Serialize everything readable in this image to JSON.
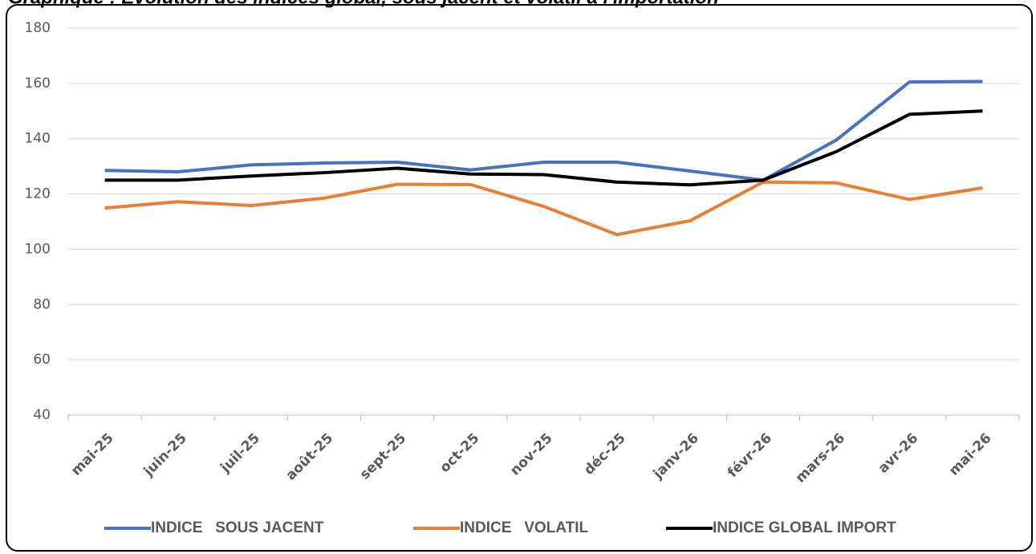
{
  "chart_data": {
    "type": "line",
    "title": "Graphique : Evolution des indices global, sous jacent et volatil à l'importation",
    "categories": [
      "mai-25",
      "juin-25",
      "juil-25",
      "août-25",
      "sept-25",
      "oct-25",
      "nov-25",
      "déc-25",
      "janv-26",
      "févr-26",
      "mars-26",
      "avr-26",
      "mai-26"
    ],
    "series": [
      {
        "name": "INDICE   SOUS JACENT",
        "color": "#4472c4",
        "values": [
          128.5,
          128,
          130.5,
          131.2,
          131.5,
          128.7,
          131.5,
          131.5,
          128.3,
          125,
          139.5,
          160.5,
          160.7
        ]
      },
      {
        "name": "INDICE   VOLATIL",
        "color": "#ed7d31",
        "values": [
          114.9,
          117.2,
          115.8,
          118.5,
          123.5,
          123.4,
          115.5,
          105.3,
          110.3,
          124.3,
          124,
          118,
          122.2
        ]
      },
      {
        "name": "INDICE GLOBAL IMPORT",
        "color": "#000000",
        "values": [
          125,
          125,
          126.5,
          127.7,
          129.3,
          127.2,
          127,
          124.3,
          123.3,
          125,
          135.3,
          148.8,
          150
        ]
      }
    ],
    "ylim": [
      40,
      180
    ],
    "yticks": [
      40,
      60,
      80,
      100,
      120,
      140,
      160,
      180
    ],
    "grid": true
  }
}
